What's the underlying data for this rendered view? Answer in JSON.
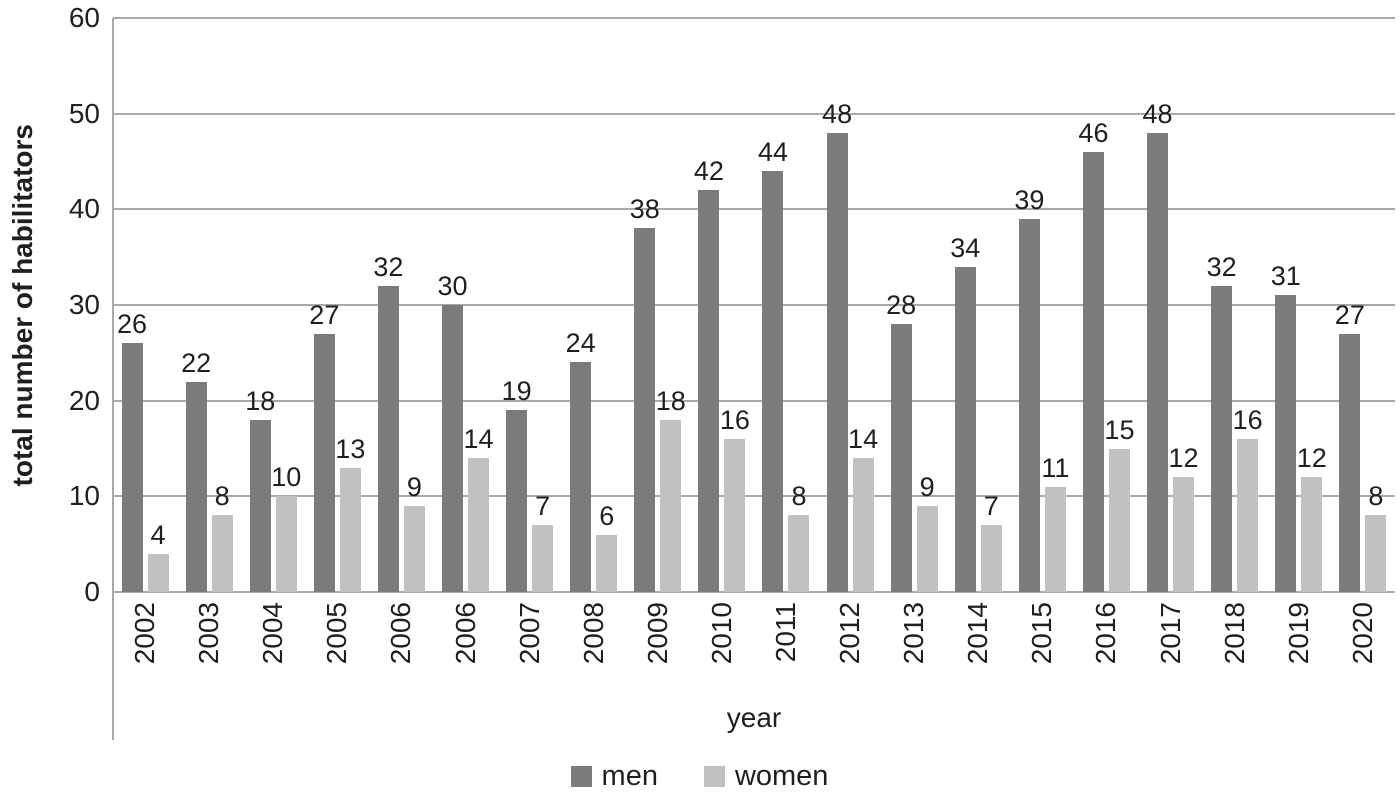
{
  "chart_data": {
    "type": "bar",
    "title": "",
    "xlabel": "year",
    "ylabel": "total number of habilitators",
    "ylim": [
      0,
      60
    ],
    "yticks": [
      0,
      10,
      20,
      30,
      40,
      50,
      60
    ],
    "grid": true,
    "legend_position": "bottom",
    "categories": [
      "2002",
      "2003",
      "2004",
      "2005",
      "2006",
      "2006",
      "2007",
      "2008",
      "2009",
      "2010",
      "2011",
      "2012",
      "2013",
      "2014",
      "2015",
      "2016",
      "2017",
      "2018",
      "2019",
      "2020"
    ],
    "series": [
      {
        "name": "men",
        "color": "#7b7b7e",
        "values": [
          26,
          22,
          18,
          27,
          32,
          30,
          19,
          24,
          38,
          42,
          44,
          48,
          28,
          34,
          39,
          46,
          48,
          32,
          31,
          27
        ]
      },
      {
        "name": "women",
        "color": "#c1c1c3",
        "values": [
          4,
          8,
          10,
          13,
          9,
          14,
          7,
          6,
          18,
          16,
          8,
          14,
          9,
          7,
          11,
          15,
          12,
          16,
          12,
          8
        ]
      }
    ]
  },
  "colors": {
    "gridline": "#a9a9ad",
    "axis_line": "#a9a9ad",
    "text": "#1f1f1f",
    "background": "#ffffff"
  }
}
